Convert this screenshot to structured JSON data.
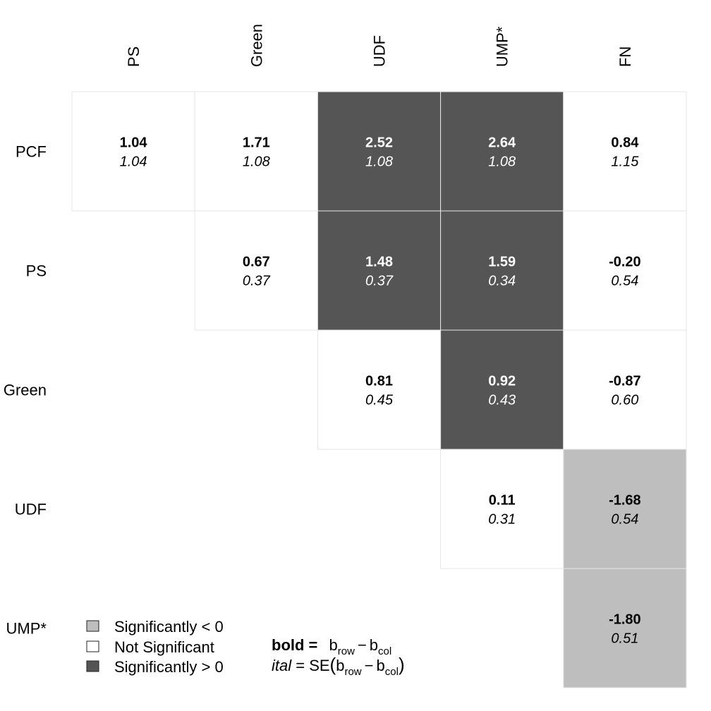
{
  "chart_data": {
    "type": "heatmap",
    "columns": [
      "PS",
      "Green",
      "UDF",
      "UMP*",
      "FN"
    ],
    "rows": [
      "PCF",
      "PS",
      "Green",
      "UDF",
      "UMP*"
    ],
    "cells": [
      [
        {
          "diff": "1.04",
          "se": "1.04",
          "sig": "ns"
        },
        {
          "diff": "1.71",
          "se": "1.08",
          "sig": "ns"
        },
        {
          "diff": "2.52",
          "se": "1.08",
          "sig": "pos"
        },
        {
          "diff": "2.64",
          "se": "1.08",
          "sig": "pos"
        },
        {
          "diff": "0.84",
          "se": "1.15",
          "sig": "ns"
        }
      ],
      [
        null,
        {
          "diff": "0.67",
          "se": "0.37",
          "sig": "ns"
        },
        {
          "diff": "1.48",
          "se": "0.37",
          "sig": "pos"
        },
        {
          "diff": "1.59",
          "se": "0.34",
          "sig": "pos"
        },
        {
          "diff": "-0.20",
          "se": "0.54",
          "sig": "ns"
        }
      ],
      [
        null,
        null,
        {
          "diff": "0.81",
          "se": "0.45",
          "sig": "ns"
        },
        {
          "diff": "0.92",
          "se": "0.43",
          "sig": "pos"
        },
        {
          "diff": "-0.87",
          "se": "0.60",
          "sig": "ns"
        }
      ],
      [
        null,
        null,
        null,
        {
          "diff": "0.11",
          "se": "0.31",
          "sig": "ns"
        },
        {
          "diff": "-1.68",
          "se": "0.54",
          "sig": "neg"
        }
      ],
      [
        null,
        null,
        null,
        null,
        {
          "diff": "-1.80",
          "se": "0.51",
          "sig": "neg"
        }
      ]
    ],
    "colors": {
      "neg": "#bebebe",
      "ns": "#ffffff",
      "pos": "#555555",
      "grid": "#e6e6e6"
    },
    "legend": [
      {
        "key": "neg",
        "label": "Significantly < 0"
      },
      {
        "key": "ns",
        "label": "Not Significant"
      },
      {
        "key": "pos",
        "label": "Significantly > 0"
      }
    ],
    "notes": {
      "bold_word": "bold =",
      "bold_b": "b",
      "bold_row_sub": "row",
      "minus": "−",
      "bold_col_sub": "col",
      "ital_word": "ital",
      "ital_eq": " = SE",
      "open_paren": "(",
      "close_paren": ")"
    }
  }
}
